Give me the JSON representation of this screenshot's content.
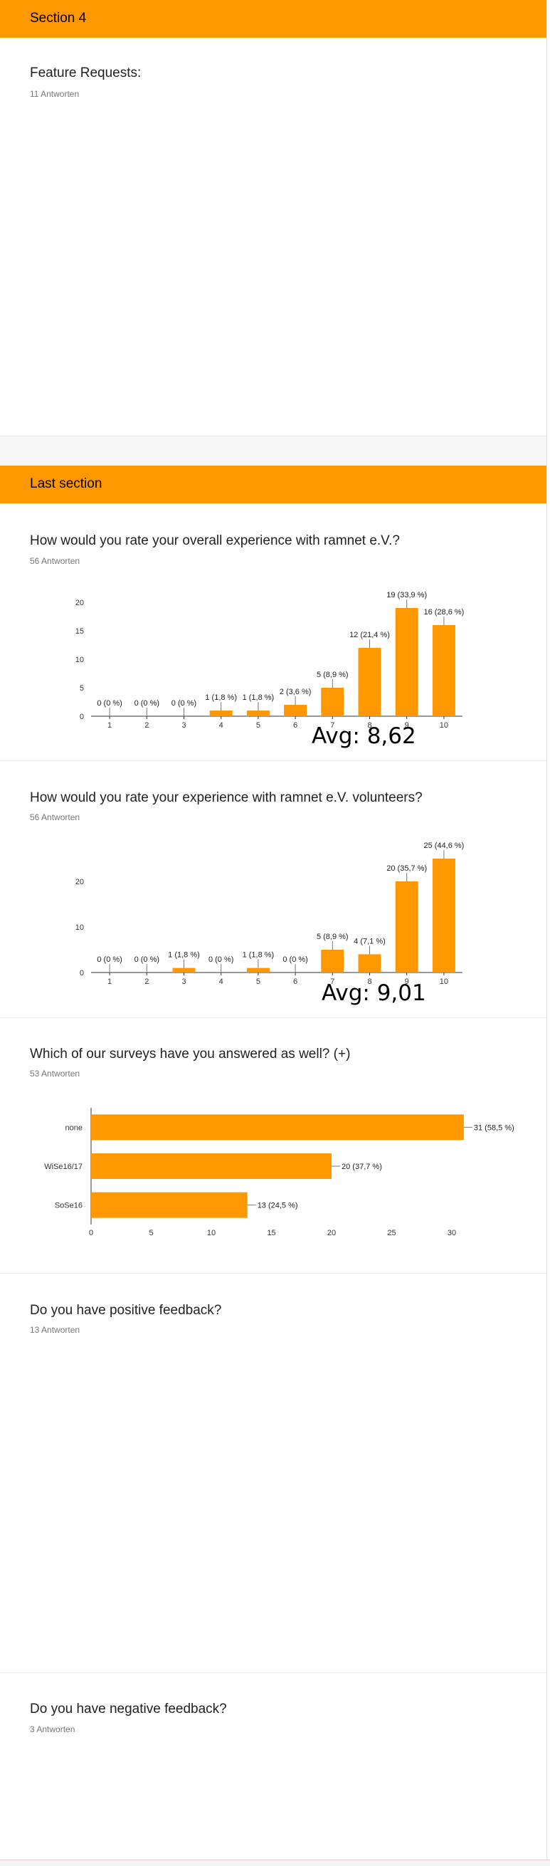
{
  "colors": {
    "accent": "#ff9800",
    "bar": "#ff9800",
    "axis": "#333333"
  },
  "section4": {
    "header": "Section 4",
    "question": "Feature Requests:",
    "responses": "11 Antworten"
  },
  "last_section": {
    "header": "Last section"
  },
  "q_overall": {
    "title": "How would you rate your overall experience with ramnet e.V.?",
    "responses": "56 Antworten",
    "avg": "Avg: 8,62"
  },
  "q_volunteers": {
    "title": "How would you rate your experience with ramnet e.V. volunteers?",
    "responses": "56 Antworten",
    "avg": "Avg: 9,01"
  },
  "q_surveys": {
    "title": "Which of our surveys have you answered as well? (+)",
    "responses": "53 Antworten"
  },
  "q_positive": {
    "title": "Do you have positive feedback?",
    "responses": "13 Antworten"
  },
  "q_negative": {
    "title": "Do you have negative feedback?",
    "responses": "3 Antworten"
  },
  "chart_data": [
    {
      "type": "bar",
      "categories": [
        "1",
        "2",
        "3",
        "4",
        "5",
        "6",
        "7",
        "8",
        "9",
        "10"
      ],
      "values": [
        0,
        0,
        0,
        1,
        1,
        2,
        5,
        12,
        19,
        16
      ],
      "labels": [
        "0 (0 %)",
        "0 (0 %)",
        "0 (0 %)",
        "1 (1,8 %)",
        "1 (1,8 %)",
        "2 (3,6 %)",
        "5 (8,9 %)",
        "12 (21,4 %)",
        "19 (33,9 %)",
        "16 (28,6 %)"
      ],
      "yticks": [
        0,
        5,
        10,
        15,
        20
      ],
      "ylim": [
        0,
        20
      ]
    },
    {
      "type": "bar",
      "categories": [
        "1",
        "2",
        "3",
        "4",
        "5",
        "6",
        "7",
        "8",
        "9",
        "10"
      ],
      "values": [
        0,
        0,
        1,
        0,
        1,
        0,
        5,
        4,
        20,
        25
      ],
      "labels": [
        "0 (0 %)",
        "0 (0 %)",
        "1 (1,8 %)",
        "0 (0 %)",
        "1 (1,8 %)",
        "0 (0 %)",
        "5 (8,9 %)",
        "4 (7,1 %)",
        "20 (35,7 %)",
        "25 (44,6 %)"
      ],
      "yticks": [
        0,
        10,
        20
      ],
      "ylim": [
        0,
        25
      ]
    },
    {
      "type": "bar",
      "orientation": "horizontal",
      "categories": [
        "none",
        "WiSe16/17",
        "SoSe16"
      ],
      "values": [
        31,
        20,
        13
      ],
      "labels": [
        "31 (58,5 %)",
        "20 (37,7 %)",
        "13 (24,5 %)"
      ],
      "xticks": [
        0,
        5,
        10,
        15,
        20,
        25,
        30
      ],
      "xlim": [
        0,
        31
      ]
    }
  ]
}
